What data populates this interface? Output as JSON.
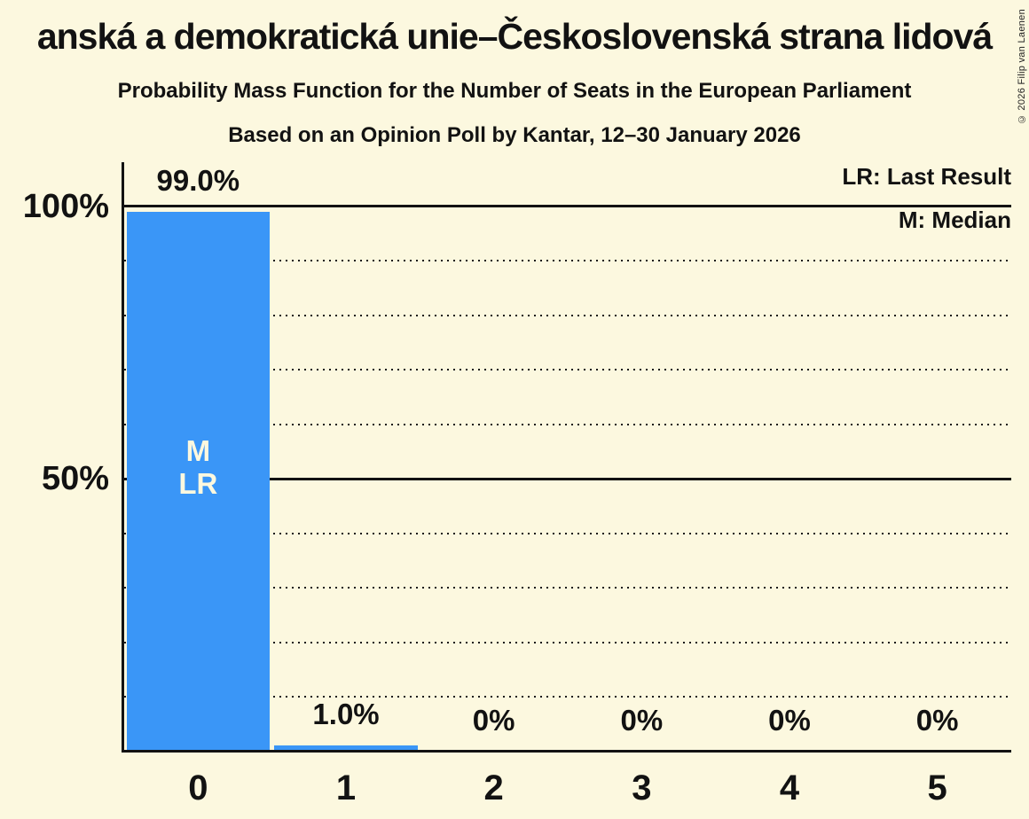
{
  "header": {
    "title": "anská a demokratická unie–Československá strana lidová",
    "subtitle": "Probability Mass Function for the Number of Seats in the European Parliament",
    "source_line": "Based on an Opinion Poll by Kantar, 12–30 January 2026"
  },
  "copyright": "© 2026 Filip van Laenen",
  "legend": {
    "last_result": "LR: Last Result",
    "median": "M: Median"
  },
  "y_axis": {
    "labels": [
      "100%",
      "50%"
    ]
  },
  "colors": {
    "background": "#FCF8DF",
    "bar": "#3A96F7",
    "text": "#121212",
    "bar_label_text": "#FCF8DF"
  },
  "chart_data": {
    "type": "bar",
    "categories": [
      "0",
      "1",
      "2",
      "3",
      "4",
      "5"
    ],
    "values": [
      99.0,
      1.0,
      0,
      0,
      0,
      0
    ],
    "value_labels": [
      "99.0%",
      "1.0%",
      "0%",
      "0%",
      "0%",
      "0%"
    ],
    "markers": [
      [
        "M",
        "LR"
      ],
      [],
      [],
      [],
      [],
      []
    ],
    "ylim": [
      0,
      100
    ],
    "y_ticks": [
      {
        "value": 100,
        "label": "100%"
      },
      {
        "value": 50,
        "label": "50%"
      }
    ],
    "gridlines_solid": [
      100,
      50
    ],
    "gridlines_dotted": [
      90,
      80,
      70,
      60,
      40,
      30,
      20,
      10
    ],
    "legend_entries": [
      "LR: Last Result",
      "M: Median"
    ]
  }
}
